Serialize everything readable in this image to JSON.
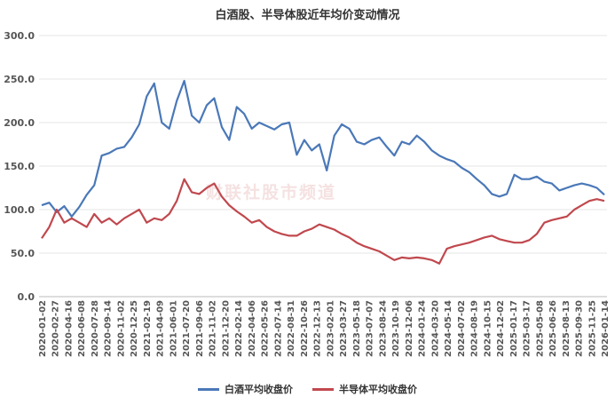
{
  "chart_data": {
    "type": "line",
    "title": "白酒股、半导体股近年均价变动情况",
    "xlabel": "",
    "ylabel": "",
    "ylim": [
      0,
      300
    ],
    "yticks": [
      "0.0",
      "50.0",
      "100.0",
      "150.0",
      "200.0",
      "250.0",
      "300.0"
    ],
    "x_tick_labels": [
      "2020-01-02",
      "2020-02-27",
      "2020-04-16",
      "2020-06-08",
      "2020-07-28",
      "2020-09-14",
      "2020-11-02",
      "2020-12-25",
      "2021-02-19",
      "2021-04-09",
      "2021-06-01",
      "2021-07-20",
      "2021-09-06",
      "2021-11-02",
      "2021-12-20",
      "2022-02-14",
      "2022-04-06",
      "2022-05-26",
      "2022-07-14",
      "2022-08-31",
      "2022-10-26",
      "2022-12-13",
      "2023-02-01",
      "2023-03-27",
      "2023-05-18",
      "2023-07-07",
      "2023-08-24",
      "2023-10-19",
      "2023-12-06",
      "2024-01-24",
      "2024-03-20",
      "2024-05-14",
      "2024-07-02",
      "2024-08-19",
      "2024-10-15",
      "2024-12-02",
      "2025-01-17",
      "2025-03-17",
      "2025-05-08",
      "2025-06-26",
      "2025-08-13",
      "2025-09-30",
      "2025-11-25",
      "2026-01-14"
    ],
    "grid": true,
    "legend_position": "bottom",
    "watermark": "财联社股市频道",
    "series": [
      {
        "name": "白酒平均收盘价",
        "color": "#4a78b8",
        "values": [
          105,
          108,
          97,
          104,
          92,
          103,
          117,
          128,
          162,
          165,
          170,
          172,
          183,
          198,
          230,
          245,
          200,
          193,
          225,
          248,
          208,
          200,
          220,
          228,
          195,
          180,
          218,
          210,
          193,
          200,
          196,
          192,
          198,
          200,
          163,
          180,
          168,
          175,
          145,
          185,
          198,
          193,
          178,
          175,
          180,
          183,
          172,
          162,
          178,
          175,
          185,
          178,
          168,
          162,
          158,
          155,
          148,
          143,
          135,
          128,
          118,
          115,
          118,
          140,
          135,
          135,
          138,
          132,
          130,
          122,
          125,
          128,
          130,
          128,
          125,
          117
        ]
      },
      {
        "name": "半导体平均收盘价",
        "color": "#c0484e",
        "values": [
          67,
          80,
          100,
          85,
          90,
          85,
          80,
          95,
          85,
          90,
          83,
          90,
          95,
          100,
          85,
          90,
          88,
          95,
          110,
          135,
          120,
          118,
          125,
          130,
          115,
          105,
          98,
          92,
          85,
          88,
          80,
          75,
          72,
          70,
          70,
          75,
          78,
          83,
          80,
          77,
          72,
          68,
          62,
          58,
          55,
          52,
          47,
          42,
          45,
          44,
          45,
          44,
          42,
          38,
          55,
          58,
          60,
          62,
          65,
          68,
          70,
          66,
          64,
          62,
          62,
          65,
          72,
          85,
          88,
          90,
          92,
          100,
          105,
          110,
          112,
          110
        ]
      }
    ]
  }
}
